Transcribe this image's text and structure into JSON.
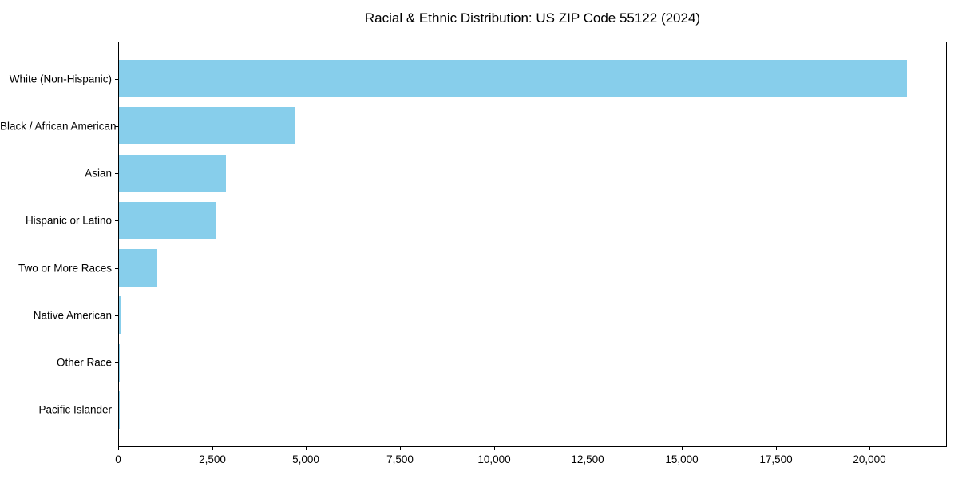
{
  "chart_data": {
    "type": "bar",
    "orientation": "horizontal",
    "title": "Racial & Ethnic Distribution: US ZIP Code 55122 (2024)",
    "categories": [
      "White (Non-Hispanic)",
      "Black / African American",
      "Asian",
      "Hispanic or Latino",
      "Two or More Races",
      "Native American",
      "Other Race",
      "Pacific Islander"
    ],
    "values": [
      21000,
      4680,
      2850,
      2580,
      1020,
      70,
      25,
      5
    ],
    "xlabel": "",
    "ylabel": "",
    "xlim": [
      0,
      22050
    ],
    "x_tick_values": [
      0,
      2500,
      5000,
      7500,
      10000,
      12500,
      15000,
      17500,
      20000
    ],
    "x_tick_labels": [
      "0",
      "2,500",
      "5,000",
      "7,500",
      "10,000",
      "12,500",
      "15,000",
      "17,500",
      "20,000"
    ],
    "bar_color": "#87CEEB",
    "grid": false,
    "legend": "none",
    "background_color": "#ffffff"
  }
}
